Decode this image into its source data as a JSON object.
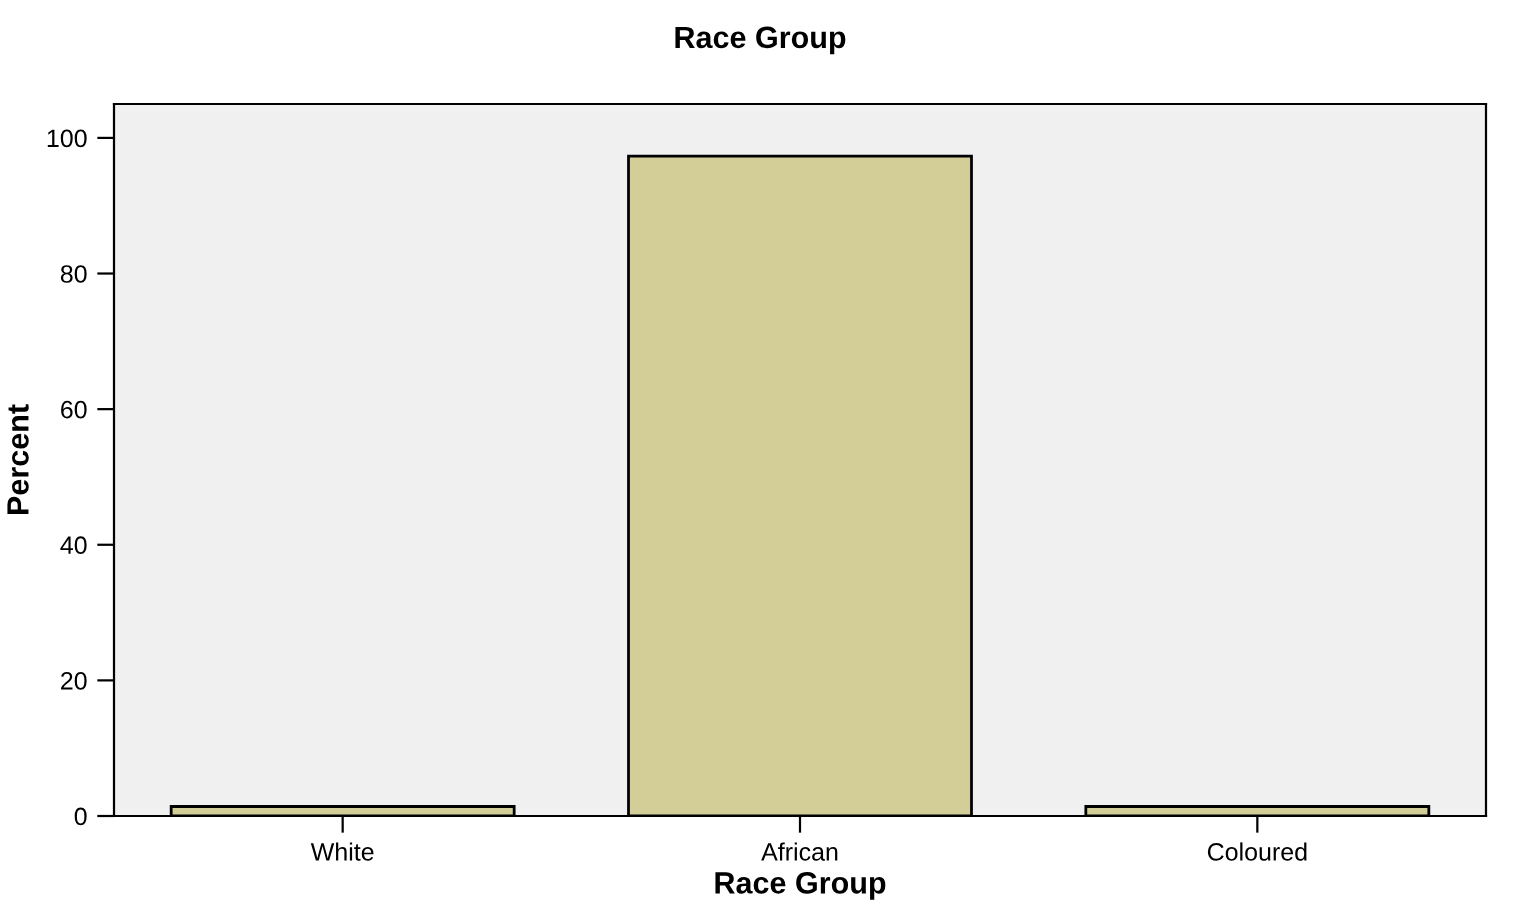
{
  "chart_data": {
    "type": "bar",
    "title": "Race Group",
    "xlabel": "Race Group",
    "ylabel": "Percent",
    "categories": [
      "White",
      "African",
      "Coloured"
    ],
    "values": [
      1.4,
      97.3,
      1.4
    ],
    "color": "#d3ce97",
    "ylim": [
      0,
      105
    ],
    "yticks": [
      0,
      20,
      40,
      60,
      80,
      100
    ],
    "grid": false
  }
}
